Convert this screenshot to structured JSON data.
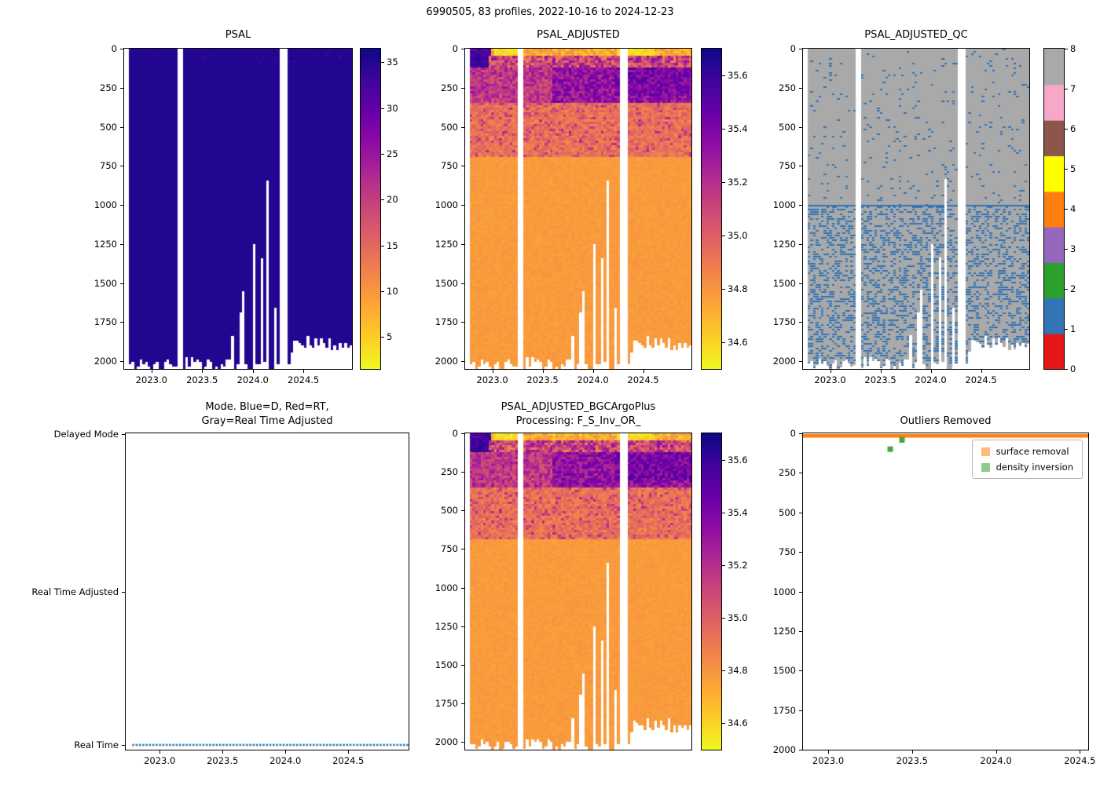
{
  "figure": {
    "title": "6990505, 83 profiles, 2022-10-16 to 2024-12-23",
    "background": "#ffffff"
  },
  "time_axis": {
    "min": 2022.73,
    "max": 2024.98,
    "tick_values": [
      2023.0,
      2023.5,
      2024.0,
      2024.5
    ],
    "tick_labels": [
      "2023.0",
      "2023.5",
      "2024.0",
      "2024.5"
    ]
  },
  "depth_axis": {
    "min": 0,
    "max": 2050,
    "tick_values": [
      0,
      250,
      500,
      750,
      1000,
      1250,
      1500,
      1750,
      2000
    ]
  },
  "profiles": {
    "count": 83,
    "time_start": 2022.79,
    "time_end": 2024.97,
    "gaps": [
      [
        2023.255,
        2023.315
      ],
      [
        2024.275,
        2024.345
      ]
    ],
    "max_depth": 2050,
    "bottom_anchors": [
      [
        2022.79,
        2005
      ],
      [
        2023.0,
        2020
      ],
      [
        2023.3,
        2015
      ],
      [
        2023.6,
        2025
      ],
      [
        2023.9,
        2035
      ],
      [
        2024.26,
        2045
      ],
      [
        2024.36,
        2040
      ],
      [
        2024.42,
        1885
      ],
      [
        2024.6,
        1875
      ],
      [
        2024.8,
        1885
      ],
      [
        2024.97,
        1905
      ]
    ],
    "bottom_jitter": 45,
    "shallow_spikes": [
      [
        2023.81,
        1835
      ],
      [
        2023.87,
        1690
      ],
      [
        2023.91,
        1545
      ],
      [
        2024.02,
        1250
      ],
      [
        2024.08,
        1335
      ],
      [
        2024.15,
        835
      ],
      [
        2024.23,
        1660
      ]
    ],
    "seed": 42
  },
  "chart_data": [
    {
      "id": "psal",
      "type": "heatmap",
      "title": "PSAL",
      "x_tick_labels": [
        "2023.0",
        "2023.5",
        "2024.0",
        "2024.5"
      ],
      "y_tick_values": [
        0,
        250,
        500,
        750,
        1000,
        1250,
        1500,
        1750,
        2000
      ],
      "colormap": "plasma_reversed",
      "colorbar": {
        "vmin": 1.5,
        "vmax": 36.5,
        "tick_values": [
          5,
          10,
          15,
          20,
          25,
          30,
          35
        ],
        "tick_labels": [
          "5",
          "10",
          "15",
          "20",
          "25",
          "30",
          "35"
        ]
      },
      "field": {
        "base": 35.05,
        "noise": 0.12,
        "surface_depth": 80,
        "surface_min": 33.2,
        "surface_prob": 0.06
      }
    },
    {
      "id": "psal_adjusted",
      "type": "heatmap",
      "title": "PSAL_ADJUSTED",
      "colormap": "plasma_reversed",
      "colorbar": {
        "vmin": 34.5,
        "vmax": 35.7,
        "tick_values": [
          34.6,
          34.8,
          35.0,
          35.2,
          35.4,
          35.6
        ],
        "tick_labels": [
          "34.6",
          "34.8",
          "35.0",
          "35.2",
          "35.4",
          "35.6"
        ]
      },
      "field": {
        "surface_base": 34.6,
        "surface_salty_until": 2023.0,
        "thermocline_base": 35.14,
        "thermocline_late_base": 35.3,
        "thermocline_latest_base": 35.38,
        "mid_base": 34.93,
        "deep_base": 34.78,
        "deep_noise": 0.05
      }
    },
    {
      "id": "psal_adjusted_qc",
      "type": "qc_heatmap",
      "title": "PSAL_ADJUSTED_QC",
      "colorbar": {
        "tick_values": [
          0,
          1,
          2,
          3,
          4,
          5,
          6,
          7,
          8
        ],
        "colors": [
          "#e41616",
          "#3274b5",
          "#2ca02c",
          "#9467bd",
          "#ff7f0e",
          "#ffff00",
          "#8c564b",
          "#f7a8c9",
          "#a9a9a9"
        ]
      },
      "background_qc": 8,
      "flagged_qc": 1,
      "sparse_density": 0.055,
      "dense_density": 0.38,
      "dense_below_depth": 1000
    },
    {
      "id": "mode",
      "type": "scatter",
      "title": "Mode. Blue=D, Red=RT,\nGray=Real Time Adjusted",
      "categories": [
        "Delayed Mode",
        "Real Time Adjusted",
        "Real Time"
      ],
      "series": [
        {
          "name": "profile-mode",
          "category": "Real Time",
          "color": "#1f77b4",
          "marker": "dot",
          "count": 83
        }
      ]
    },
    {
      "id": "psal_adjusted_bgc",
      "type": "heatmap",
      "title": "PSAL_ADJUSTED_BGCArgoPlus\nProcessing: F_S_Inv_OR_",
      "colormap": "plasma_reversed",
      "colorbar": {
        "vmin": 34.5,
        "vmax": 35.7,
        "tick_values": [
          34.6,
          34.8,
          35.0,
          35.2,
          35.4,
          35.6
        ],
        "tick_labels": [
          "34.6",
          "34.8",
          "35.0",
          "35.2",
          "35.4",
          "35.6"
        ]
      },
      "field_ref": "psal_adjusted"
    },
    {
      "id": "outliers",
      "type": "scatter",
      "title": "Outliers Removed",
      "x_range": [
        2022.85,
        2024.55
      ],
      "x_tick_values": [
        2023.0,
        2023.5,
        2024.0,
        2024.5
      ],
      "x_tick_labels": [
        "2023.0",
        "2023.5",
        "2024.0",
        "2024.5"
      ],
      "y_range": [
        0,
        2000
      ],
      "y_tick_values": [
        0,
        250,
        500,
        750,
        1000,
        1250,
        1500,
        1750,
        2000
      ],
      "series": [
        {
          "name": "surface removal",
          "color": "#ff7f0e",
          "style": "surface_band",
          "depth": 8
        },
        {
          "name": "density inversion",
          "color": "#2ca02c",
          "style": "points",
          "points": [
            [
              2023.37,
              100
            ],
            [
              2023.44,
              42
            ]
          ]
        }
      ],
      "legend_position": "upper right"
    }
  ]
}
